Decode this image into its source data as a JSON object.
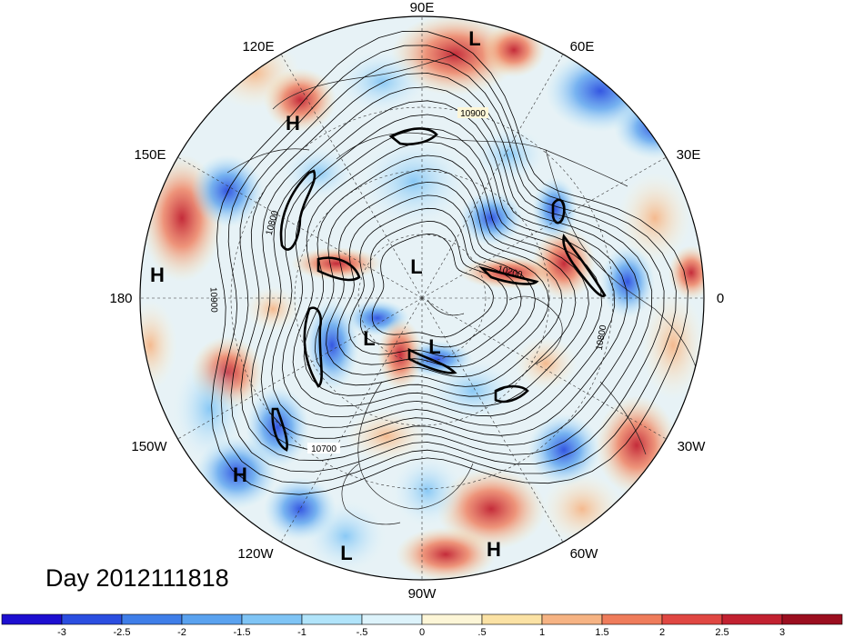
{
  "title": "Day 2012111818",
  "longitude_labels": [
    "90E",
    "60E",
    "30E",
    "0",
    "30W",
    "60W",
    "90W",
    "120W",
    "150W",
    "180",
    "150E",
    "120E"
  ],
  "pressure_centers": [
    "L",
    "H",
    "H",
    "L",
    "L",
    "L",
    "H",
    "L",
    "H"
  ],
  "contour_labels": [
    "10900",
    "10800",
    "10900",
    "10200",
    "10800",
    "10700"
  ],
  "colorbar": {
    "tick_labels": [
      "-3",
      "-2.5",
      "-2",
      "-1.5",
      "-1",
      "-.5",
      "0",
      ".5",
      "1",
      "1.5",
      "2",
      "2.5",
      "3"
    ],
    "colors": [
      "#1d0fd0",
      "#2b4ee0",
      "#3f7ee8",
      "#5aa2ef",
      "#7fc4f5",
      "#b1e4fa",
      "#ddf3fb",
      "#fdf6d7",
      "#fbe2a4",
      "#f6b383",
      "#ef7c5b",
      "#e04742",
      "#c22130",
      "#9b0e1f"
    ]
  },
  "map_colors": {
    "ocean_bg": "#e7f2f6",
    "contour": "#000000",
    "grid": "#333333"
  }
}
